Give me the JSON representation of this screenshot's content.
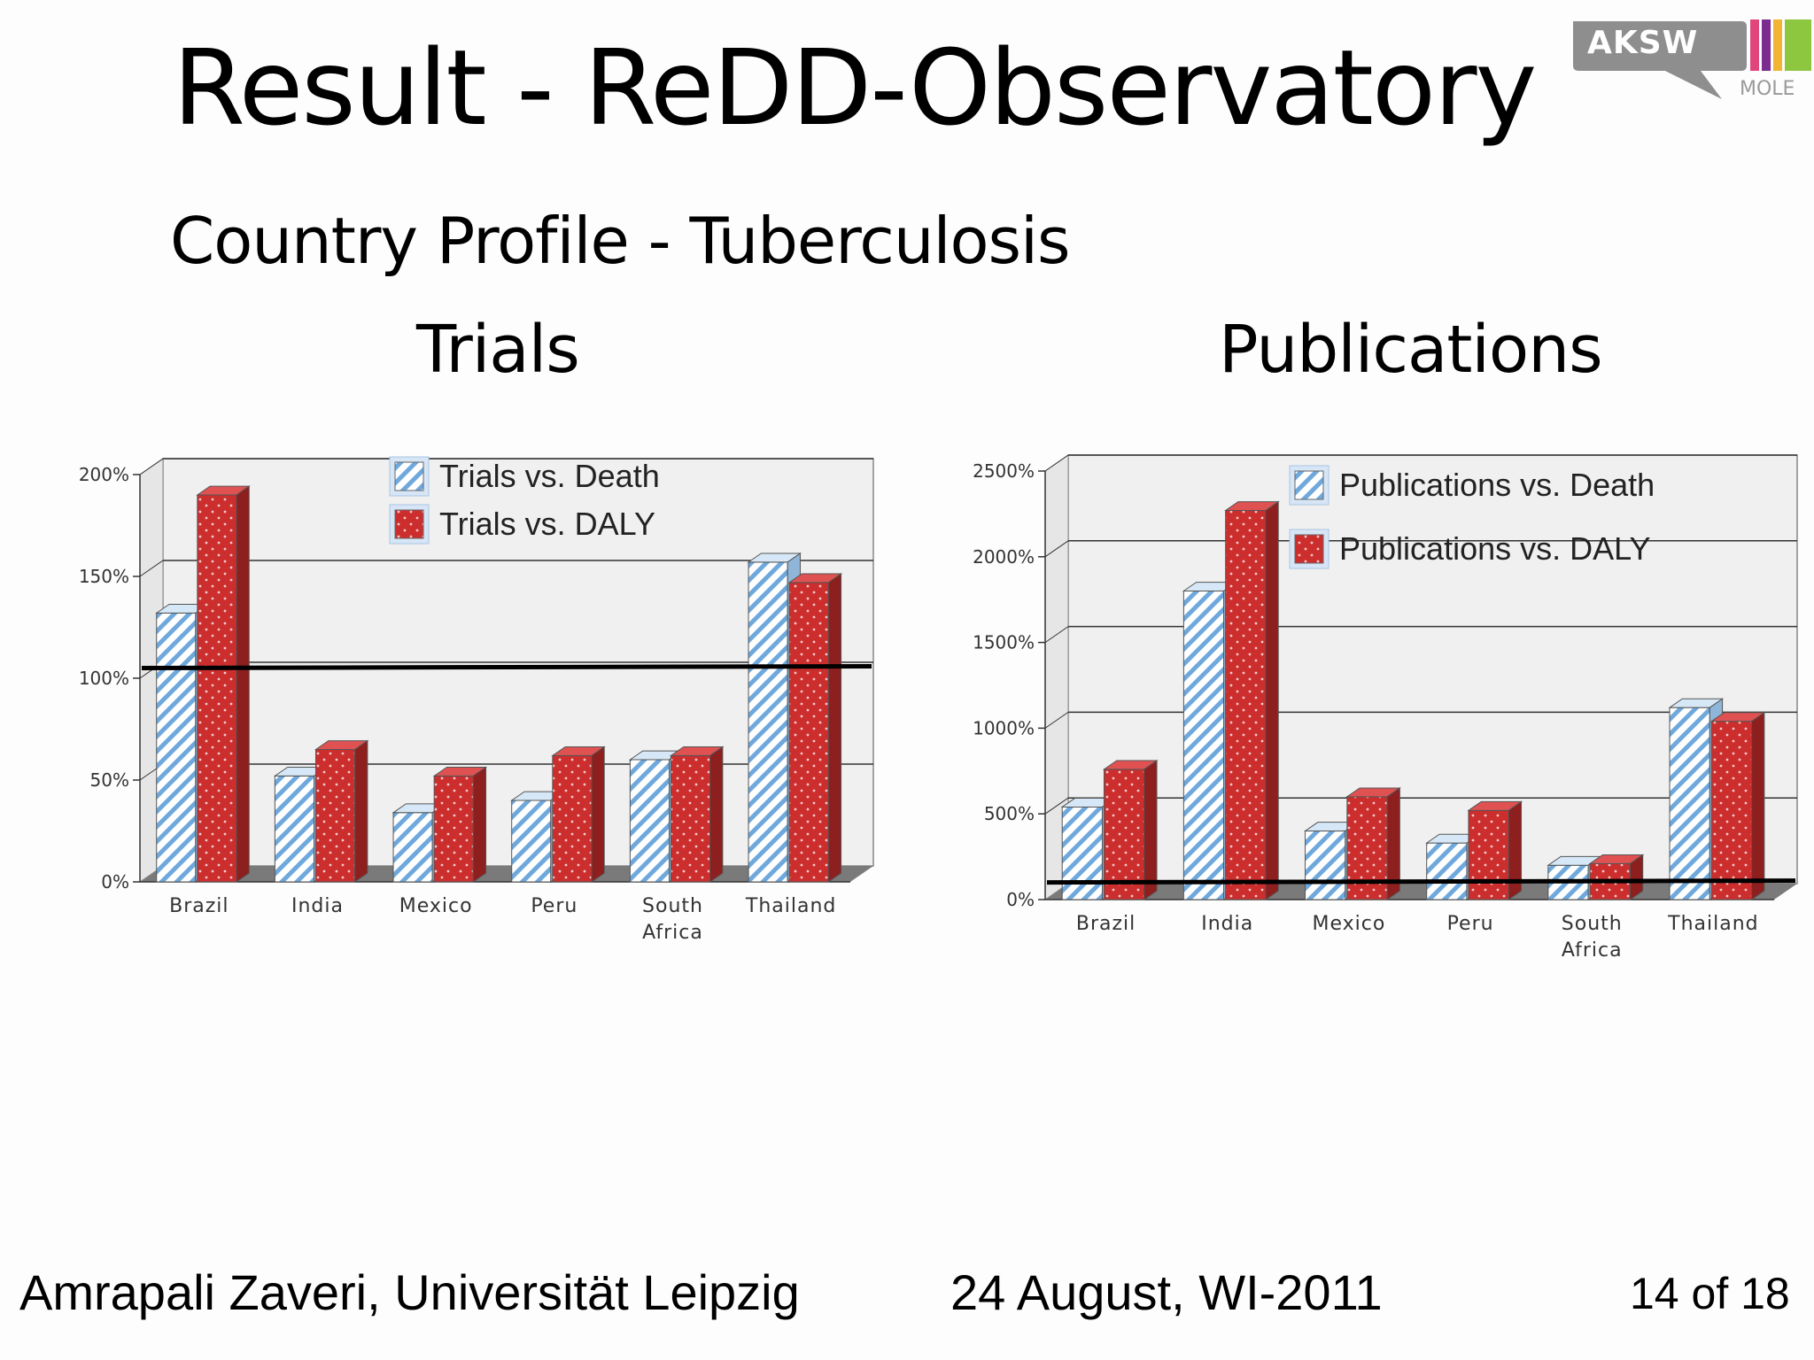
{
  "slide": {
    "title": "Result - ReDD-Observatory",
    "subtitle": "Country Profile - Tuberculosis",
    "footer_author": "Amrapali Zaveri, Universität Leipzig",
    "footer_date": "24 August, WI-2011",
    "page": "14 of 18"
  },
  "logo": {
    "text": "AKSW",
    "sub": "MOLE",
    "colors": [
      "#8e8e8e",
      "#e0457b",
      "#f2b433",
      "#8dc63f",
      "#7b2c8e"
    ]
  },
  "colors": {
    "death_bar": "#bcd9f0",
    "death_stripe": "#6fa8dc",
    "daly_bar": "#cc2e2e",
    "daly_dot": "#f2c9c9",
    "plot_bg": "#f0f0f0",
    "floor": "#7a7a7a"
  },
  "chart_data": [
    {
      "type": "bar",
      "title": "Trials",
      "categories": [
        "Brazil",
        "India",
        "Mexico",
        "Peru",
        "South Africa",
        "Thailand"
      ],
      "series": [
        {
          "name": "Trials vs. Death",
          "values": [
            132,
            52,
            34,
            40,
            60,
            157
          ]
        },
        {
          "name": "Trials vs. DALY",
          "values": [
            190,
            65,
            52,
            62,
            62,
            147
          ]
        }
      ],
      "ylim": [
        0,
        200
      ],
      "yticks": [
        "0%",
        "50%",
        "100%",
        "150%",
        "200%"
      ],
      "reference_line": 105,
      "legend": "top-center",
      "grid": true
    },
    {
      "type": "bar",
      "title": "Publications",
      "categories": [
        "Brazil",
        "India",
        "Mexico",
        "Peru",
        "South Africa",
        "Thailand"
      ],
      "series": [
        {
          "name": "Publications vs. Death",
          "values": [
            540,
            1800,
            400,
            330,
            200,
            1120
          ]
        },
        {
          "name": "Publications vs. DALY",
          "values": [
            760,
            2270,
            600,
            520,
            210,
            1040
          ]
        }
      ],
      "ylim": [
        0,
        2500
      ],
      "yticks": [
        "0%",
        "500%",
        "1000%",
        "1500%",
        "2000%",
        "2500%"
      ],
      "reference_line": 100,
      "legend": "top-center",
      "grid": true
    }
  ]
}
